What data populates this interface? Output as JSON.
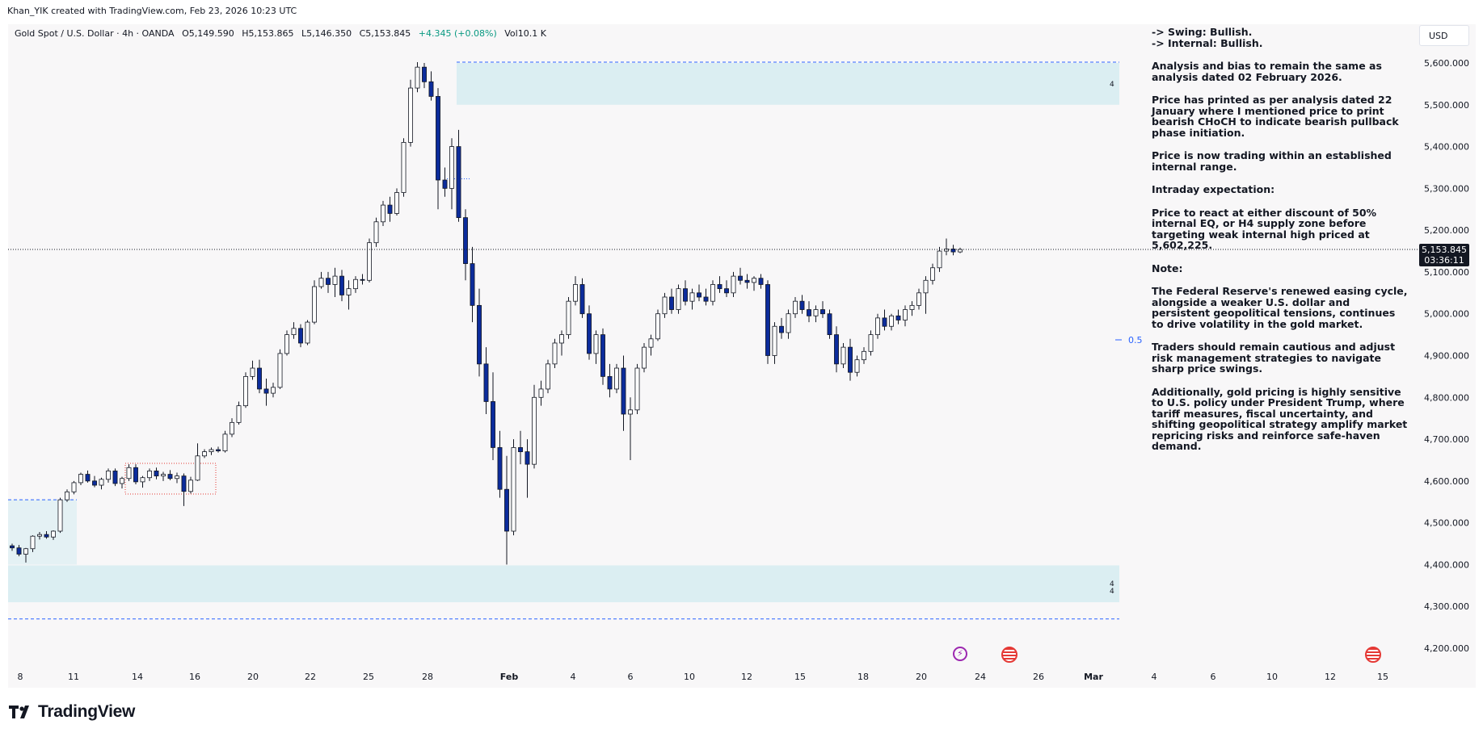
{
  "header": {
    "credit": "Khan_YIK created with TradingView.com, Feb 23, 2026 10:23 UTC"
  },
  "symbol_bar": {
    "name": "Gold Spot / U.S. Dollar · 4h · OANDA",
    "open": "O5,149.590",
    "high": "H5,153.865",
    "low": "L5,146.350",
    "close": "C5,153.845",
    "change": "+4.345 (+0.08%)",
    "volume": "Vol10.1 K"
  },
  "currency_label": "USD",
  "last_price": {
    "value": "5,153.845",
    "countdown": "03:36:11"
  },
  "fib_label": "0.5",
  "zone_labels": {
    "upper": "4",
    "lower_1": "4",
    "lower_2": "4"
  },
  "notes": [
    "-> Swing:  Bullish.",
    "-> Internal:  Bullish.",
    "Analysis and bias to remain the same as analysis dated 02 February 2026.",
    "Price has printed as per analysis dated 22 January where I mentioned price to print bearish CHoCH to indicate bearish pullback phase initiation.",
    "Price is now trading within an established internal range.",
    "Intraday expectation:",
    "Price to react at either discount of 50% internal EQ, or H4 supply zone before targeting weak internal high priced at 5,602,225.",
    "Note:",
    "The Federal Reserve's renewed easing cycle, alongside a weaker U.S. dollar and persistent geopolitical tensions, continues to drive volatility in the gold market.",
    "Traders should remain cautious and adjust risk management strategies to navigate sharp price swings.",
    "Additionally, gold pricing is highly sensitive to U.S. policy under President Trump, where tariff measures, fiscal uncertainty, and shifting geopolitical strategy amplify market repricing risks and reinforce safe-haven demand."
  ],
  "brand": "TradingView",
  "colors": {
    "bull": "#ffffff",
    "bear": "#0c2c9c",
    "zone": "#dbeef2",
    "dash": "#2962ff",
    "accent_red": "#e53935"
  },
  "chart_data": {
    "type": "candlestick",
    "title": "",
    "ylim": [
      4160,
      5640
    ],
    "y_ticks": [
      "5,600.000",
      "5,500.000",
      "5,400.000",
      "5,300.000",
      "5,200.000",
      "5,100.000",
      "5,000.000",
      "4,900.000",
      "4,800.000",
      "4,700.000",
      "4,600.000",
      "4,500.000",
      "4,400.000",
      "4,300.000",
      "4,200.000"
    ],
    "x_ticks": [
      "8",
      "11",
      "14",
      "16",
      "20",
      "22",
      "25",
      "28",
      "Feb",
      "4",
      "6",
      "10",
      "12",
      "15",
      "18",
      "20",
      "24",
      "26",
      "Mar",
      "4",
      "6",
      "10",
      "12",
      "15"
    ],
    "grid": false,
    "zones": [
      {
        "name": "supply",
        "from": 5500,
        "to": 5600,
        "upper_bound_line": 5602
      },
      {
        "name": "demand",
        "from": 4310,
        "to": 4398,
        "lower_bound_line": 4270
      },
      {
        "name": "early-range",
        "from": 4400,
        "to": 4555
      }
    ],
    "last_close": 5153.845,
    "candles": [
      [
        4445,
        4450,
        4433,
        4440
      ],
      [
        4440,
        4447,
        4420,
        4425
      ],
      [
        4425,
        4440,
        4405,
        4438
      ],
      [
        4438,
        4470,
        4430,
        4468
      ],
      [
        4468,
        4478,
        4460,
        4472
      ],
      [
        4472,
        4480,
        4462,
        4466
      ],
      [
        4466,
        4482,
        4459,
        4480
      ],
      [
        4480,
        4560,
        4476,
        4555
      ],
      [
        4555,
        4580,
        4550,
        4574
      ],
      [
        4574,
        4600,
        4568,
        4596
      ],
      [
        4596,
        4620,
        4590,
        4616
      ],
      [
        4616,
        4625,
        4596,
        4600
      ],
      [
        4600,
        4612,
        4585,
        4590
      ],
      [
        4590,
        4608,
        4580,
        4604
      ],
      [
        4604,
        4630,
        4596,
        4624
      ],
      [
        4624,
        4630,
        4588,
        4594
      ],
      [
        4594,
        4610,
        4582,
        4606
      ],
      [
        4606,
        4640,
        4600,
        4632
      ],
      [
        4632,
        4640,
        4592,
        4598
      ],
      [
        4598,
        4612,
        4584,
        4608
      ],
      [
        4608,
        4630,
        4600,
        4624
      ],
      [
        4624,
        4632,
        4604,
        4612
      ],
      [
        4612,
        4622,
        4600,
        4616
      ],
      [
        4616,
        4626,
        4602,
        4606
      ],
      [
        4606,
        4620,
        4595,
        4612
      ],
      [
        4612,
        4618,
        4540,
        4575
      ],
      [
        4575,
        4610,
        4570,
        4602
      ],
      [
        4602,
        4690,
        4600,
        4660
      ],
      [
        4660,
        4676,
        4655,
        4670
      ],
      [
        4670,
        4680,
        4662,
        4675
      ],
      [
        4675,
        4682,
        4668,
        4672
      ],
      [
        4672,
        4720,
        4668,
        4712
      ],
      [
        4712,
        4750,
        4705,
        4740
      ],
      [
        4740,
        4790,
        4735,
        4780
      ],
      [
        4780,
        4860,
        4775,
        4850
      ],
      [
        4850,
        4888,
        4842,
        4870
      ],
      [
        4870,
        4890,
        4810,
        4820
      ],
      [
        4820,
        4845,
        4780,
        4810
      ],
      [
        4810,
        4835,
        4800,
        4824
      ],
      [
        4824,
        4915,
        4820,
        4905
      ],
      [
        4905,
        4960,
        4900,
        4950
      ],
      [
        4950,
        4980,
        4940,
        4965
      ],
      [
        4965,
        4975,
        4920,
        4930
      ],
      [
        4930,
        4985,
        4925,
        4980
      ],
      [
        4980,
        5080,
        4975,
        5065
      ],
      [
        5065,
        5100,
        5060,
        5085
      ],
      [
        5085,
        5100,
        5050,
        5070
      ],
      [
        5070,
        5110,
        5040,
        5090
      ],
      [
        5090,
        5105,
        5030,
        5045
      ],
      [
        5045,
        5080,
        5010,
        5060
      ],
      [
        5060,
        5090,
        5050,
        5082
      ],
      [
        5082,
        5095,
        5070,
        5080
      ],
      [
        5080,
        5180,
        5075,
        5170
      ],
      [
        5170,
        5230,
        5160,
        5220
      ],
      [
        5220,
        5270,
        5210,
        5260
      ],
      [
        5260,
        5280,
        5220,
        5240
      ],
      [
        5240,
        5300,
        5235,
        5290
      ],
      [
        5290,
        5420,
        5280,
        5410
      ],
      [
        5410,
        5560,
        5400,
        5540
      ],
      [
        5540,
        5602,
        5530,
        5590
      ],
      [
        5590,
        5600,
        5540,
        5555
      ],
      [
        5555,
        5580,
        5510,
        5520
      ],
      [
        5520,
        5540,
        5250,
        5320
      ],
      [
        5320,
        5350,
        5280,
        5300
      ],
      [
        5300,
        5420,
        5250,
        5400
      ],
      [
        5400,
        5440,
        5220,
        5230
      ],
      [
        5230,
        5250,
        5080,
        5120
      ],
      [
        5120,
        5160,
        4980,
        5020
      ],
      [
        5020,
        5060,
        4850,
        4880
      ],
      [
        4880,
        4920,
        4760,
        4790
      ],
      [
        4790,
        4860,
        4650,
        4680
      ],
      [
        4680,
        4720,
        4560,
        4580
      ],
      [
        4580,
        4660,
        4400,
        4480
      ],
      [
        4480,
        4700,
        4470,
        4680
      ],
      [
        4680,
        4720,
        4640,
        4670
      ],
      [
        4670,
        4700,
        4560,
        4640
      ],
      [
        4640,
        4830,
        4630,
        4800
      ],
      [
        4800,
        4840,
        4780,
        4820
      ],
      [
        4820,
        4890,
        4810,
        4880
      ],
      [
        4880,
        4940,
        4870,
        4930
      ],
      [
        4930,
        4960,
        4900,
        4950
      ],
      [
        4950,
        5040,
        4940,
        5030
      ],
      [
        5030,
        5090,
        5020,
        5070
      ],
      [
        5070,
        5085,
        4990,
        5000
      ],
      [
        5000,
        5020,
        4890,
        4905
      ],
      [
        4905,
        4960,
        4880,
        4950
      ],
      [
        4950,
        4965,
        4830,
        4850
      ],
      [
        4850,
        4880,
        4800,
        4820
      ],
      [
        4820,
        4880,
        4810,
        4870
      ],
      [
        4870,
        4900,
        4720,
        4760
      ],
      [
        4760,
        4800,
        4650,
        4770
      ],
      [
        4770,
        4880,
        4760,
        4870
      ],
      [
        4870,
        4930,
        4860,
        4920
      ],
      [
        4920,
        4950,
        4900,
        4940
      ],
      [
        4940,
        5010,
        4935,
        5000
      ],
      [
        5000,
        5050,
        4990,
        5040
      ],
      [
        5040,
        5060,
        5000,
        5010
      ],
      [
        5010,
        5070,
        5000,
        5060
      ],
      [
        5060,
        5080,
        5020,
        5030
      ],
      [
        5030,
        5060,
        5010,
        5050
      ],
      [
        5050,
        5070,
        5030,
        5040
      ],
      [
        5040,
        5060,
        5020,
        5030
      ],
      [
        5030,
        5080,
        5020,
        5070
      ],
      [
        5070,
        5090,
        5050,
        5060
      ],
      [
        5060,
        5080,
        5040,
        5050
      ],
      [
        5050,
        5100,
        5040,
        5090
      ],
      [
        5090,
        5110,
        5070,
        5080
      ],
      [
        5080,
        5095,
        5060,
        5075
      ],
      [
        5075,
        5090,
        5055,
        5085
      ],
      [
        5085,
        5095,
        5060,
        5070
      ],
      [
        5070,
        5080,
        4880,
        4900
      ],
      [
        4900,
        4980,
        4880,
        4970
      ],
      [
        4970,
        4990,
        4940,
        4955
      ],
      [
        4955,
        5010,
        4940,
        5000
      ],
      [
        5000,
        5040,
        4990,
        5030
      ],
      [
        5030,
        5045,
        5000,
        5010
      ],
      [
        5010,
        5030,
        4980,
        4995
      ],
      [
        4995,
        5020,
        4980,
        5010
      ],
      [
        5010,
        5030,
        4990,
        5000
      ],
      [
        5000,
        5010,
        4940,
        4950
      ],
      [
        4950,
        4970,
        4860,
        4880
      ],
      [
        4880,
        4930,
        4870,
        4920
      ],
      [
        4920,
        4940,
        4840,
        4860
      ],
      [
        4860,
        4900,
        4850,
        4890
      ],
      [
        4890,
        4920,
        4880,
        4910
      ],
      [
        4910,
        4960,
        4900,
        4950
      ],
      [
        4950,
        5000,
        4940,
        4990
      ],
      [
        4990,
        5010,
        4960,
        4970
      ],
      [
        4970,
        5000,
        4960,
        4995
      ],
      [
        4995,
        5010,
        4975,
        4985
      ],
      [
        4985,
        5020,
        4970,
        5010
      ],
      [
        5010,
        5030,
        4995,
        5020
      ],
      [
        5020,
        5060,
        5010,
        5050
      ],
      [
        5050,
        5090,
        5000,
        5080
      ],
      [
        5080,
        5120,
        5070,
        5110
      ],
      [
        5110,
        5160,
        5100,
        5150
      ],
      [
        5150,
        5180,
        5140,
        5155
      ],
      [
        5155,
        5165,
        5140,
        5148
      ],
      [
        5148,
        5158,
        5145,
        5153.845
      ]
    ]
  }
}
